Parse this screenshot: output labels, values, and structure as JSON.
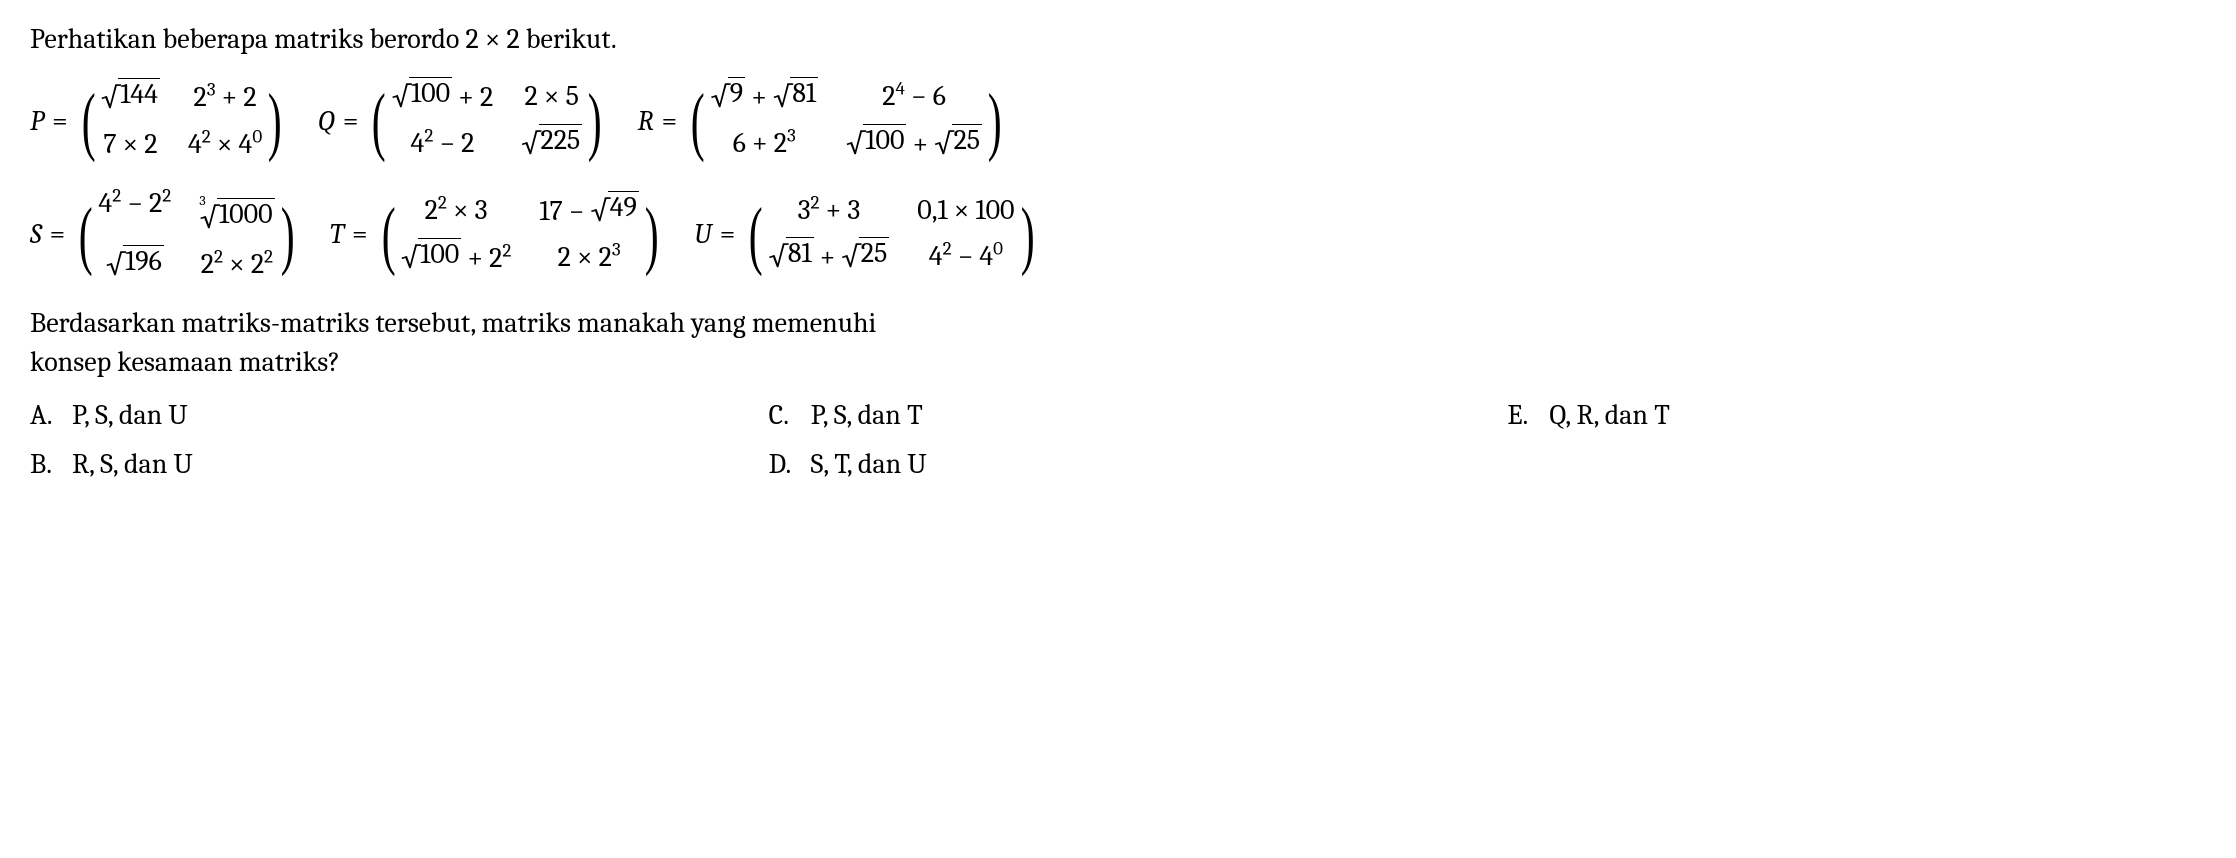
{
  "intro": "Perhatikan beberapa matriks berordo 2 × 2 berikut.",
  "matrices": {
    "P": {
      "name": "P",
      "cells": [
        "__SQRT__144",
        "2^3 + 2",
        "7 × 2",
        "4^2 × 4^0"
      ]
    },
    "Q": {
      "name": "Q",
      "cells": [
        "__SQRT__100__END__ + 2",
        "2 × 5",
        "4^2 − 2",
        "__SQRT__225"
      ]
    },
    "R": {
      "name": "R",
      "cells": [
        "__SQRT__9__END__ + __SQRT__81",
        "2^4 − 6",
        "6 + 2^3",
        "__SQRT__100__END__ + __SQRT__25"
      ]
    },
    "S": {
      "name": "S",
      "cells": [
        "4^2 − 2^2",
        "__CBRT__1000",
        "__SQRT__196",
        "2^2 × 2^2"
      ]
    },
    "T": {
      "name": "T",
      "cells": [
        "2^2 × 3",
        "17 − __SQRT__49",
        "__SQRT__100__END__ + 2^2",
        "2 × 2^3"
      ]
    },
    "U": {
      "name": "U",
      "cells": [
        "3^2 + 3",
        "0,1 × 100",
        "__SQRT__81__END__ + __SQRT__25",
        "4^2 − 4^0"
      ]
    }
  },
  "question_line1": "Berdasarkan matriks-matriks tersebut, matriks manakah yang memenuhi",
  "question_line2": "konsep kesamaan matriks?",
  "options": {
    "A": "P, S, dan U",
    "B": "R, S, dan U",
    "C": "P, S, dan T",
    "D": "S, T, dan U",
    "E": "Q, R, dan T"
  },
  "style": {
    "font_family": "Cambria/Georgia serif",
    "font_size_pt": 21,
    "text_color": "#000000",
    "background": "#ffffff",
    "matrix_paren_scale": 2.6
  }
}
